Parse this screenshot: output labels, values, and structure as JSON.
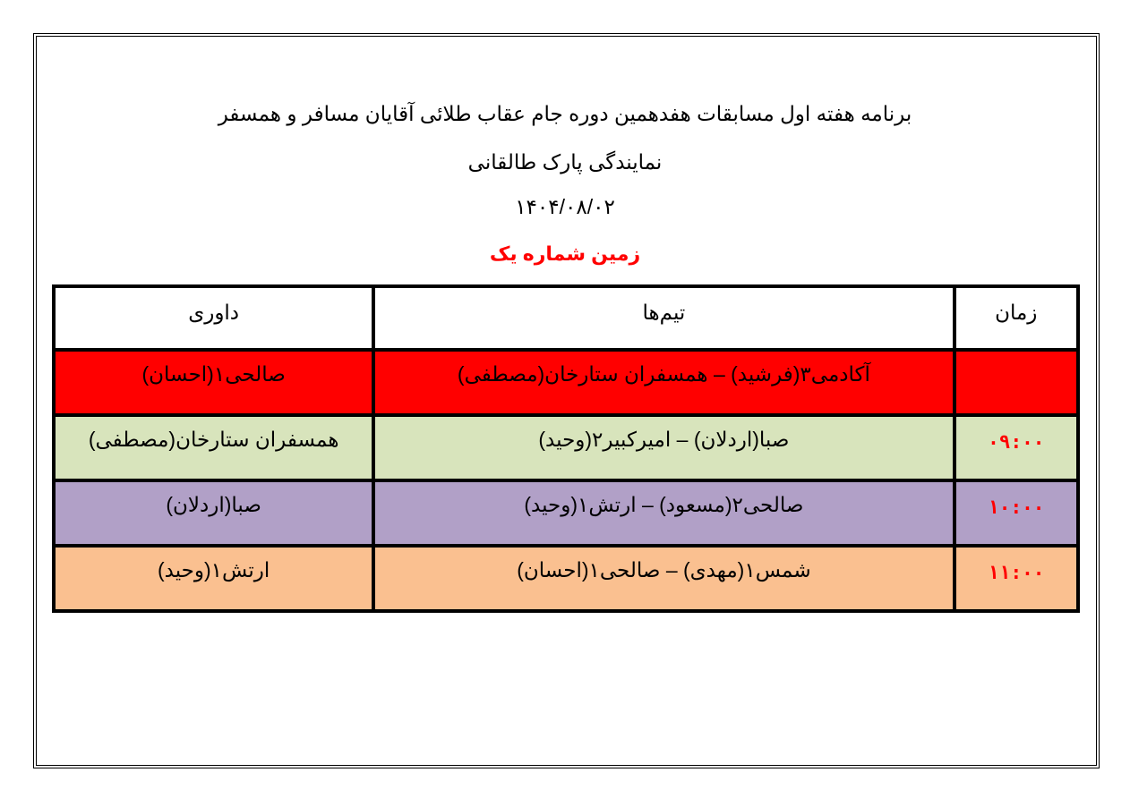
{
  "header": {
    "line1": "برنامه هفته اول مسابقات هفدهمین دوره جام عقاب طلائی آقایان مسافر و همسفر",
    "line2": "نمایندگی پارک طالقانی",
    "date": "۱۴۰۴/۰۸/۰۲",
    "field": "زمین شماره یک"
  },
  "colors": {
    "field_title": "#ff0000",
    "time": "#ff0000",
    "row1": "#ff0000",
    "row2": "#d8e4bc",
    "row3": "#b1a0c7",
    "row4": "#fac090"
  },
  "table": {
    "columns": [
      "زمان",
      "تیم‌ها",
      "داوری"
    ],
    "rows": [
      {
        "time": "",
        "teams": "آکادمی۳(فرشید) – همسفران ستارخان(مصطفی)",
        "referee": "صالحی۱(احسان)",
        "bg": "#ff0000"
      },
      {
        "time": "۰۹:۰۰",
        "teams": "صبا(اردلان) – امیرکبیر۲(وحید)",
        "referee": "همسفران ستارخان(مصطفی)",
        "bg": "#d8e4bc"
      },
      {
        "time": "۱۰:۰۰",
        "teams": "صالحی۲(مسعود) – ارتش۱(وحید)",
        "referee": "صبا(اردلان)",
        "bg": "#b1a0c7"
      },
      {
        "time": "۱۱:۰۰",
        "teams": "شمس۱(مهدی) – صالحی۱(احسان)",
        "referee": "ارتش۱(وحید)",
        "bg": "#fac090"
      }
    ]
  }
}
